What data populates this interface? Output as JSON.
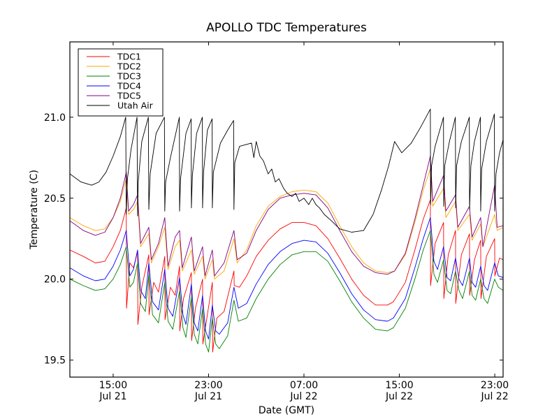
{
  "chart_data": {
    "type": "line",
    "title": "APOLLO TDC Temperatures",
    "xlabel": "Date (GMT)",
    "ylabel": "Temperature (C)",
    "x_units": "hours since Jul 21 00:00 GMT",
    "xlim": [
      11.37,
      47.7
    ],
    "ylim": [
      19.395,
      21.465
    ],
    "grid": false,
    "legend_position": "top-left",
    "x_ticks": [
      {
        "value": 15,
        "label_time": "15:00",
        "label_date": "Jul 21"
      },
      {
        "value": 23,
        "label_time": "23:00",
        "label_date": "Jul 21"
      },
      {
        "value": 31,
        "label_time": "07:00",
        "label_date": "Jul 22"
      },
      {
        "value": 39,
        "label_time": "15:00",
        "label_date": "Jul 22"
      },
      {
        "value": 47,
        "label_time": "23:00",
        "label_date": "Jul 22"
      }
    ],
    "y_ticks": [
      {
        "value": 19.5,
        "label": "19.5"
      },
      {
        "value": 20.0,
        "label": "20.0"
      },
      {
        "value": 20.5,
        "label": "20.5"
      },
      {
        "value": 21.0,
        "label": "21.0"
      }
    ],
    "series": [
      {
        "name": "TDC1",
        "color": "#ff0000",
        "x": [
          11.37,
          12.5,
          13.5,
          14.3,
          15.0,
          15.6,
          16.1,
          16.12,
          16.4,
          16.7,
          17.05,
          17.07,
          17.4,
          17.99,
          18.01,
          18.4,
          18.8,
          19.33,
          19.35,
          19.8,
          20.2,
          20.57,
          20.59,
          20.9,
          21.56,
          21.58,
          21.9,
          22.5,
          22.52,
          22.9,
          23.32,
          23.34,
          23.7,
          24.3,
          25.13,
          25.15,
          25.6,
          26.2,
          27.0,
          28.0,
          29.0,
          30.0,
          31.0,
          32.0,
          33.0,
          34.0,
          35.0,
          36.0,
          37.0,
          38.0,
          38.5,
          39.5,
          40.3,
          41.0,
          41.6,
          41.62,
          42.0,
          42.71,
          42.73,
          43.1,
          43.71,
          43.73,
          44.2,
          44.88,
          44.9,
          45.3,
          45.82,
          45.84,
          46.3,
          46.99,
          47.01,
          47.4,
          47.7
        ],
        "y": [
          20.18,
          20.14,
          20.1,
          20.11,
          20.2,
          20.3,
          20.44,
          19.82,
          20.1,
          20.07,
          20.17,
          19.72,
          19.95,
          20.15,
          19.78,
          19.98,
          19.92,
          20.14,
          19.75,
          19.95,
          19.9,
          20.08,
          19.68,
          19.88,
          20.04,
          19.62,
          19.82,
          20.0,
          19.6,
          19.78,
          19.98,
          19.55,
          19.76,
          19.8,
          20.05,
          19.96,
          19.95,
          20.02,
          20.14,
          20.24,
          20.31,
          20.35,
          20.35,
          20.33,
          20.25,
          20.13,
          20.0,
          19.9,
          19.84,
          19.84,
          19.86,
          19.98,
          20.18,
          20.37,
          20.49,
          19.96,
          20.22,
          20.35,
          19.88,
          20.15,
          20.3,
          19.85,
          20.15,
          20.28,
          19.9,
          20.12,
          20.24,
          19.88,
          20.14,
          20.25,
          20.02,
          20.13,
          20.12
        ]
      },
      {
        "name": "TDC2",
        "color": "#ffa500",
        "x": [
          11.37,
          12.5,
          13.5,
          14.3,
          15.0,
          15.6,
          16.1,
          16.3,
          16.7,
          17.05,
          17.3,
          17.99,
          18.2,
          18.8,
          19.33,
          19.6,
          20.2,
          20.57,
          20.8,
          21.56,
          21.8,
          22.5,
          22.7,
          23.32,
          23.5,
          24.3,
          25.13,
          25.4,
          26.2,
          27.0,
          28.0,
          29.0,
          30.0,
          31.0,
          32.0,
          33.0,
          34.0,
          35.0,
          36.0,
          37.0,
          38.0,
          38.6,
          39.5,
          40.3,
          41.0,
          41.6,
          41.8,
          42.71,
          42.9,
          43.71,
          43.9,
          44.88,
          45.1,
          45.82,
          46.0,
          46.99,
          47.2,
          47.7
        ],
        "y": [
          20.38,
          20.33,
          20.3,
          20.31,
          20.38,
          20.48,
          20.62,
          20.4,
          20.43,
          20.48,
          20.2,
          20.28,
          20.1,
          20.2,
          20.32,
          20.06,
          20.2,
          20.24,
          20.05,
          20.18,
          20.03,
          20.14,
          20.0,
          20.12,
          20.0,
          20.05,
          20.25,
          20.1,
          20.18,
          20.33,
          20.45,
          20.51,
          20.54,
          20.55,
          20.54,
          20.47,
          20.33,
          20.2,
          20.1,
          20.05,
          20.04,
          20.05,
          20.15,
          20.35,
          20.55,
          20.68,
          20.45,
          20.56,
          20.38,
          20.48,
          20.3,
          20.4,
          20.24,
          20.34,
          20.2,
          20.4,
          20.3,
          20.32
        ]
      },
      {
        "name": "TDC3",
        "color": "#008000",
        "x": [
          11.37,
          12.5,
          13.5,
          14.3,
          15.0,
          15.6,
          16.1,
          16.4,
          16.7,
          17.05,
          17.3,
          17.7,
          17.99,
          18.3,
          18.8,
          19.33,
          19.6,
          20.0,
          20.57,
          20.85,
          21.1,
          21.56,
          21.8,
          22.1,
          22.5,
          22.75,
          23.0,
          23.32,
          23.6,
          23.9,
          24.6,
          25.13,
          25.5,
          26.2,
          27.0,
          28.0,
          29.0,
          30.0,
          31.0,
          32.0,
          33.0,
          34.0,
          35.0,
          36.0,
          37.0,
          38.0,
          38.5,
          39.5,
          40.3,
          41.0,
          41.6,
          41.9,
          42.2,
          42.71,
          43.0,
          43.3,
          43.71,
          44.0,
          44.3,
          44.88,
          45.1,
          45.4,
          45.82,
          46.1,
          46.4,
          46.99,
          47.3,
          47.7
        ],
        "y": [
          20.0,
          19.96,
          19.93,
          19.94,
          20.0,
          20.09,
          20.2,
          19.95,
          19.98,
          20.1,
          19.85,
          19.8,
          20.03,
          19.78,
          19.73,
          19.98,
          19.74,
          19.69,
          19.93,
          19.7,
          19.64,
          19.89,
          19.66,
          19.6,
          19.82,
          19.6,
          19.55,
          19.76,
          19.6,
          19.57,
          19.65,
          19.87,
          19.74,
          19.76,
          19.88,
          20.0,
          20.09,
          20.15,
          20.17,
          20.17,
          20.11,
          19.99,
          19.86,
          19.76,
          19.69,
          19.68,
          19.7,
          19.82,
          20.0,
          20.18,
          20.3,
          20.03,
          19.98,
          20.12,
          19.93,
          19.91,
          20.05,
          19.93,
          19.88,
          20.05,
          19.9,
          19.87,
          20.0,
          19.88,
          19.85,
          20.0,
          19.95,
          19.93
        ]
      },
      {
        "name": "TDC4",
        "color": "#0000ff",
        "x": [
          11.37,
          12.5,
          13.5,
          14.3,
          15.0,
          15.6,
          16.1,
          16.4,
          16.7,
          17.05,
          17.3,
          17.7,
          17.99,
          18.3,
          18.8,
          19.33,
          19.6,
          20.0,
          20.57,
          20.85,
          21.1,
          21.56,
          21.8,
          22.1,
          22.5,
          22.75,
          23.0,
          23.32,
          23.6,
          23.9,
          24.6,
          25.13,
          25.5,
          26.2,
          27.0,
          28.0,
          29.0,
          30.0,
          31.0,
          32.0,
          33.0,
          34.0,
          35.0,
          36.0,
          37.0,
          38.0,
          38.5,
          39.5,
          40.3,
          41.0,
          41.6,
          41.9,
          42.2,
          42.71,
          43.0,
          43.3,
          43.71,
          44.0,
          44.3,
          44.88,
          45.1,
          45.4,
          45.82,
          46.1,
          46.4,
          46.99,
          47.3,
          47.7
        ],
        "y": [
          20.07,
          20.02,
          19.99,
          20.0,
          20.08,
          20.18,
          20.3,
          20.02,
          20.06,
          20.18,
          19.93,
          19.88,
          20.1,
          19.86,
          19.81,
          20.06,
          19.82,
          19.77,
          20.01,
          19.78,
          19.72,
          19.97,
          19.73,
          19.68,
          19.9,
          19.68,
          19.63,
          19.84,
          19.68,
          19.66,
          19.73,
          19.95,
          19.82,
          19.85,
          19.97,
          20.09,
          20.17,
          20.22,
          20.24,
          20.23,
          20.16,
          20.04,
          19.91,
          19.81,
          19.75,
          19.74,
          19.76,
          19.88,
          20.07,
          20.25,
          20.38,
          20.11,
          20.06,
          20.2,
          20.01,
          19.99,
          20.13,
          20.0,
          19.96,
          20.13,
          19.98,
          19.95,
          20.08,
          19.96,
          19.93,
          20.1,
          20.02,
          20.01
        ]
      },
      {
        "name": "TDC5",
        "color": "#800080",
        "x": [
          11.37,
          12.5,
          13.5,
          14.3,
          15.0,
          15.6,
          16.1,
          16.3,
          16.7,
          17.05,
          17.3,
          17.99,
          18.2,
          18.8,
          19.33,
          19.6,
          20.2,
          20.57,
          20.8,
          21.56,
          21.8,
          22.5,
          22.7,
          23.32,
          23.5,
          24.3,
          25.13,
          25.4,
          26.2,
          27.0,
          28.0,
          29.0,
          30.0,
          31.0,
          32.0,
          33.0,
          34.0,
          35.0,
          36.0,
          37.0,
          38.0,
          38.6,
          39.5,
          40.3,
          41.0,
          41.6,
          41.8,
          42.71,
          42.9,
          43.71,
          43.9,
          44.88,
          45.1,
          45.82,
          46.0,
          46.99,
          47.2,
          47.7
        ],
        "y": [
          20.36,
          20.3,
          20.27,
          20.29,
          20.38,
          20.5,
          20.66,
          20.42,
          20.46,
          20.52,
          20.22,
          20.32,
          20.12,
          20.22,
          20.38,
          20.08,
          20.26,
          20.3,
          20.07,
          20.26,
          20.05,
          20.2,
          20.02,
          20.18,
          20.02,
          20.1,
          20.3,
          20.12,
          20.16,
          20.3,
          20.43,
          20.5,
          20.52,
          20.53,
          20.52,
          20.44,
          20.3,
          20.17,
          20.08,
          20.04,
          20.03,
          20.05,
          20.16,
          20.37,
          20.58,
          20.76,
          20.48,
          20.64,
          20.42,
          20.52,
          20.32,
          20.45,
          20.26,
          20.38,
          20.2,
          20.58,
          20.32,
          20.33
        ]
      },
      {
        "name": "Utah Air",
        "color": "#000000",
        "x": [
          11.37,
          12.3,
          13.2,
          13.8,
          14.4,
          15.0,
          15.6,
          16.05,
          16.1,
          16.2,
          16.5,
          17.0,
          17.05,
          17.1,
          17.4,
          17.95,
          17.99,
          18.1,
          18.6,
          19.3,
          19.33,
          19.4,
          19.8,
          20.55,
          20.57,
          20.65,
          21.1,
          21.54,
          21.56,
          21.64,
          22.0,
          22.48,
          22.5,
          22.58,
          22.9,
          23.3,
          23.32,
          23.4,
          24.0,
          24.6,
          25.1,
          25.13,
          25.2,
          25.6,
          26.1,
          26.6,
          26.8,
          27.0,
          27.3,
          27.6,
          28.0,
          28.3,
          28.6,
          28.9,
          29.3,
          29.6,
          30.0,
          30.3,
          30.6,
          31.0,
          31.4,
          31.7,
          32.0,
          32.3,
          32.7,
          33.3,
          34.0,
          35.0,
          36.0,
          36.8,
          37.5,
          38.1,
          38.6,
          39.2,
          40.0,
          40.8,
          41.6,
          41.62,
          41.7,
          42.0,
          42.7,
          42.72,
          42.8,
          43.2,
          43.7,
          43.72,
          43.8,
          44.2,
          44.87,
          44.89,
          45.0,
          45.3,
          45.8,
          45.82,
          45.9,
          46.3,
          46.97,
          46.99,
          47.1,
          47.4,
          47.7
        ],
        "y": [
          20.65,
          20.6,
          20.58,
          20.6,
          20.66,
          20.76,
          20.88,
          21.0,
          20.4,
          20.62,
          20.8,
          21.0,
          20.39,
          20.6,
          20.85,
          21.0,
          20.43,
          20.65,
          20.9,
          21.0,
          20.42,
          20.6,
          20.75,
          21.0,
          20.42,
          20.62,
          20.9,
          20.99,
          20.44,
          20.64,
          20.9,
          21.0,
          20.44,
          20.66,
          20.92,
          20.99,
          20.44,
          20.66,
          20.84,
          20.92,
          20.98,
          20.43,
          20.72,
          20.82,
          20.83,
          20.84,
          20.75,
          20.85,
          20.76,
          20.73,
          20.65,
          20.68,
          20.6,
          20.62,
          20.56,
          20.53,
          20.51,
          20.53,
          20.48,
          20.5,
          20.46,
          20.5,
          20.46,
          20.44,
          20.4,
          20.36,
          20.31,
          20.29,
          20.3,
          20.4,
          20.55,
          20.7,
          20.85,
          20.78,
          20.84,
          20.94,
          21.05,
          20.46,
          20.7,
          20.82,
          21.0,
          20.45,
          20.7,
          20.85,
          21.0,
          20.44,
          20.7,
          20.85,
          21.0,
          20.43,
          20.7,
          20.85,
          21.0,
          20.42,
          20.68,
          20.85,
          21.02,
          20.42,
          20.65,
          20.78,
          20.86
        ]
      }
    ]
  }
}
